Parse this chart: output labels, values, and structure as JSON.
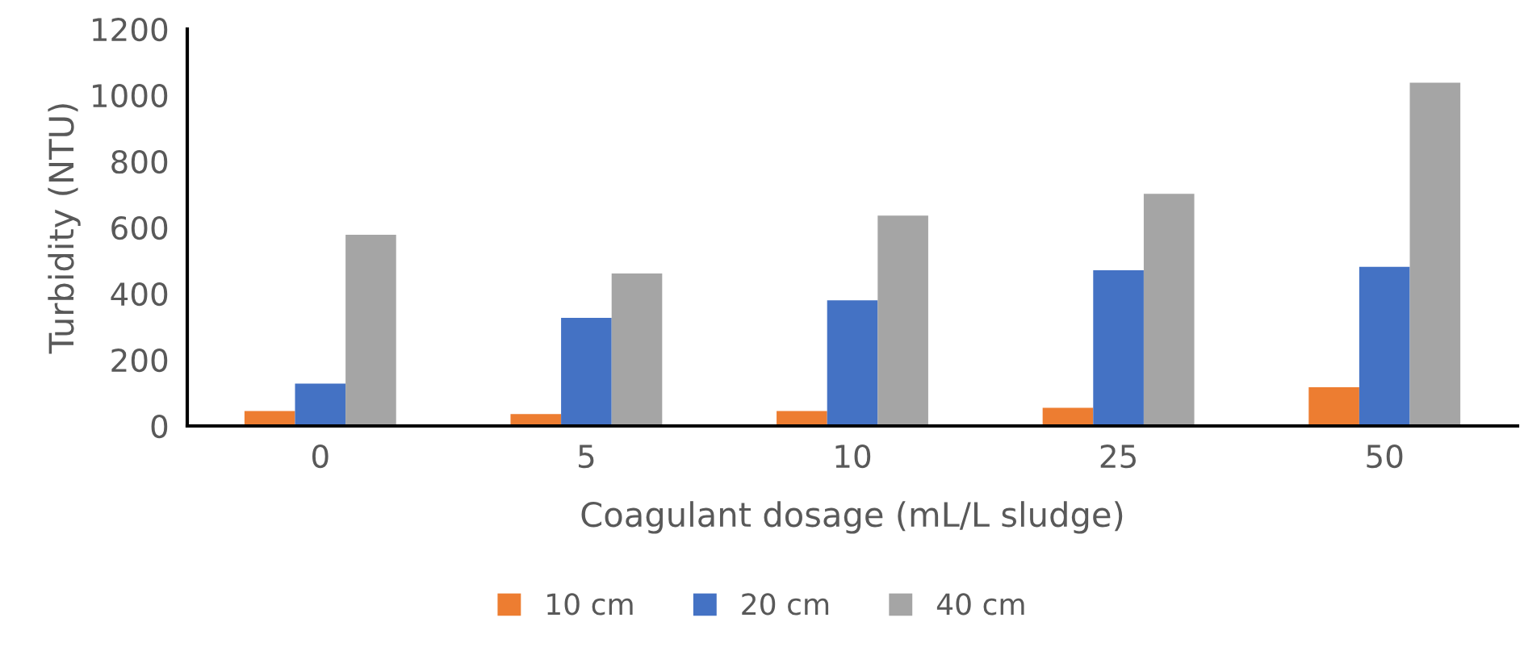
{
  "chart_data": {
    "type": "bar",
    "xlabel": "Coagulant dosage (mL/L sludge)",
    "ylabel": "Turbidity (NTU)",
    "categories": [
      "0",
      "5",
      "10",
      "25",
      "50"
    ],
    "series": [
      {
        "name": "10 cm",
        "color": "#ed7d31",
        "values": [
          45,
          36,
          45,
          55,
          117
        ]
      },
      {
        "name": "20 cm",
        "color": "#4472c4",
        "values": [
          128,
          327,
          380,
          471,
          481
        ]
      },
      {
        "name": "40 cm",
        "color": "#a5a5a5",
        "values": [
          578,
          461,
          636,
          702,
          1038
        ]
      }
    ],
    "ylim": [
      0,
      1200
    ],
    "yticks": [
      0,
      200,
      400,
      600,
      800,
      1000,
      1200
    ],
    "grid": false,
    "legend": "bottom"
  }
}
